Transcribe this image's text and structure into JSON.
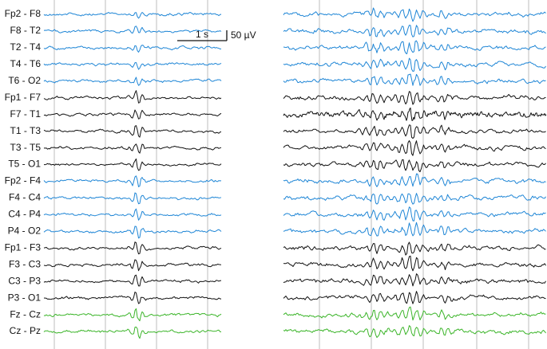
{
  "channels": [
    {
      "label": "Fp2 - F8",
      "color": "#1f86d6"
    },
    {
      "label": "F8 - T2",
      "color": "#1f86d6"
    },
    {
      "label": "T2 - T4",
      "color": "#1f86d6"
    },
    {
      "label": "T4 - T6",
      "color": "#1f86d6"
    },
    {
      "label": "T6 - O2",
      "color": "#1f86d6"
    },
    {
      "label": "Fp1 - F7",
      "color": "#111111"
    },
    {
      "label": "F7 - T1",
      "color": "#111111"
    },
    {
      "label": "T1 - T3",
      "color": "#111111"
    },
    {
      "label": "T3 - T5",
      "color": "#111111"
    },
    {
      "label": "T5 - O1",
      "color": "#111111"
    },
    {
      "label": "Fp2 - F4",
      "color": "#1f86d6"
    },
    {
      "label": "F4 - C4",
      "color": "#1f86d6"
    },
    {
      "label": "C4 - P4",
      "color": "#1f86d6"
    },
    {
      "label": "P4 - O2",
      "color": "#1f86d6"
    },
    {
      "label": "Fp1 - F3",
      "color": "#111111"
    },
    {
      "label": "F3 - C3",
      "color": "#111111"
    },
    {
      "label": "C3 - P3",
      "color": "#111111"
    },
    {
      "label": "P3 - O1",
      "color": "#111111"
    },
    {
      "label": "Fz - Cz",
      "color": "#3cb52a"
    },
    {
      "label": "Cz - Pz",
      "color": "#3cb52a"
    }
  ],
  "scale_bar": {
    "time": "1 s",
    "amplitude": "50 µV"
  }
}
